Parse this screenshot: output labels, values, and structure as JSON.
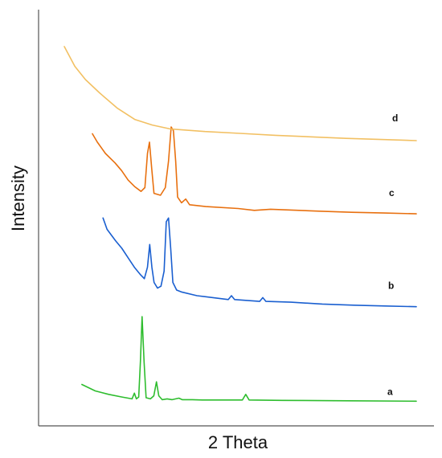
{
  "chart_data": {
    "type": "line",
    "title": "",
    "xlabel": "2 Theta",
    "ylabel": "Intensity",
    "xlim": [
      0,
      100
    ],
    "ylim": [
      0,
      100
    ],
    "grid": false,
    "legend": "inline-right",
    "series": [
      {
        "name": "a",
        "color": "#2ebd2e",
        "points": [
          [
            0,
            7.1
          ],
          [
            4,
            5.4
          ],
          [
            8,
            4.5
          ],
          [
            12,
            3.8
          ],
          [
            15,
            3.3
          ],
          [
            15.7,
            4.8
          ],
          [
            16.3,
            3.3
          ],
          [
            17,
            3.8
          ],
          [
            17.5,
            13
          ],
          [
            18,
            25
          ],
          [
            18.6,
            13
          ],
          [
            19.2,
            3.6
          ],
          [
            20.5,
            3.3
          ],
          [
            21.5,
            4.1
          ],
          [
            22.3,
            7.8
          ],
          [
            23,
            4.1
          ],
          [
            24,
            3.1
          ],
          [
            25.5,
            3.3
          ],
          [
            27,
            3.1
          ],
          [
            29,
            3.5
          ],
          [
            30,
            3.1
          ],
          [
            33,
            3.1
          ],
          [
            36,
            3
          ],
          [
            48,
            3
          ],
          [
            49,
            4.5
          ],
          [
            50,
            3
          ],
          [
            60,
            2.9
          ],
          [
            80,
            2.8
          ],
          [
            100,
            2.7
          ]
        ]
      },
      {
        "name": "b",
        "color": "#1a5fd0",
        "points": [
          [
            0,
            51
          ],
          [
            1.3,
            48
          ],
          [
            4,
            45
          ],
          [
            6,
            43
          ],
          [
            8,
            40.5
          ],
          [
            10,
            38
          ],
          [
            12,
            36
          ],
          [
            13.2,
            35
          ],
          [
            14.2,
            38
          ],
          [
            14.9,
            44
          ],
          [
            15.6,
            38
          ],
          [
            16.3,
            34
          ],
          [
            17.4,
            32.5
          ],
          [
            18.5,
            33
          ],
          [
            19.5,
            37
          ],
          [
            20.2,
            50
          ],
          [
            20.9,
            51
          ],
          [
            21.6,
            43
          ],
          [
            22.3,
            34
          ],
          [
            23.5,
            32
          ],
          [
            25,
            31.5
          ],
          [
            30,
            30.5
          ],
          [
            40,
            29.5
          ],
          [
            41,
            30.5
          ],
          [
            42,
            29.5
          ],
          [
            50,
            29
          ],
          [
            51,
            30
          ],
          [
            52,
            29
          ],
          [
            60,
            28.8
          ],
          [
            70,
            28.3
          ],
          [
            80,
            28
          ],
          [
            90,
            27.8
          ],
          [
            100,
            27.6
          ]
        ]
      },
      {
        "name": "c",
        "color": "#e8700f",
        "points": [
          [
            0,
            73.2
          ],
          [
            1.5,
            71
          ],
          [
            4,
            68
          ],
          [
            7,
            65.5
          ],
          [
            9,
            63.5
          ],
          [
            11,
            61
          ],
          [
            13,
            59.3
          ],
          [
            15,
            58
          ],
          [
            16.2,
            59
          ],
          [
            17,
            68
          ],
          [
            17.6,
            71
          ],
          [
            18.3,
            64
          ],
          [
            19,
            57.5
          ],
          [
            21,
            57
          ],
          [
            22.5,
            59
          ],
          [
            23.5,
            66
          ],
          [
            24.3,
            75
          ],
          [
            25,
            74
          ],
          [
            25.7,
            66
          ],
          [
            26.3,
            56.5
          ],
          [
            27.5,
            55
          ],
          [
            28.8,
            56
          ],
          [
            30,
            54.5
          ],
          [
            35,
            54
          ],
          [
            45,
            53.5
          ],
          [
            50,
            53
          ],
          [
            55,
            53.3
          ],
          [
            70,
            52.8
          ],
          [
            80,
            52.5
          ],
          [
            90,
            52.3
          ],
          [
            100,
            52.1
          ]
        ]
      },
      {
        "name": "d",
        "color": "#f2c063",
        "points": [
          [
            0,
            96.2
          ],
          [
            3,
            91
          ],
          [
            6,
            87.5
          ],
          [
            10,
            84
          ],
          [
            15,
            80
          ],
          [
            20,
            77
          ],
          [
            25,
            75.5
          ],
          [
            30,
            74.5
          ],
          [
            40,
            73.8
          ],
          [
            50,
            73.3
          ],
          [
            60,
            72.8
          ],
          [
            70,
            72.4
          ],
          [
            80,
            72
          ],
          [
            90,
            71.7
          ],
          [
            100,
            71.4
          ]
        ]
      }
    ]
  }
}
